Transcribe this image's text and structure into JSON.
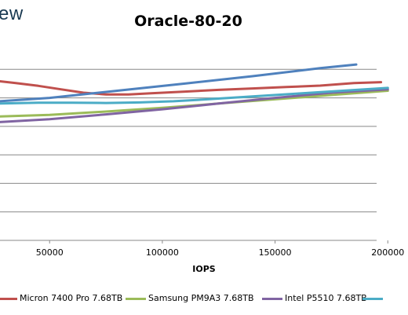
{
  "brand": {
    "text": "ew"
  },
  "chart_data": {
    "type": "line",
    "title": "Oracle-80-20",
    "xlabel": "IOPS",
    "ylabel": "",
    "xlim": [
      28000,
      202000
    ],
    "ylim": [
      0,
      7
    ],
    "x_ticks": [
      50000,
      100000,
      150000,
      200000
    ],
    "x_tick_labels": [
      "50000",
      "100000",
      "150000",
      "200000"
    ],
    "y_grid": [
      1,
      2,
      3,
      4,
      5,
      6
    ],
    "grid": true,
    "legend_position": "bottom",
    "series": [
      {
        "name": "Micron 7400 Pro 7.68TB",
        "color": "#c0504d",
        "x": [
          28000,
          35000,
          45000,
          55000,
          65000,
          75000,
          85000,
          95000,
          110000,
          125000,
          140000,
          155000,
          170000,
          185000,
          197000
        ],
        "y": [
          5.58,
          5.52,
          5.42,
          5.3,
          5.18,
          5.12,
          5.12,
          5.16,
          5.22,
          5.28,
          5.33,
          5.38,
          5.43,
          5.52,
          5.55
        ]
      },
      {
        "name": "Samsung PM9A3 7.68TB",
        "color": "#9bbb59",
        "x": [
          28000,
          50000,
          75000,
          100000,
          125000,
          150000,
          175000,
          200000
        ],
        "y": [
          4.35,
          4.4,
          4.52,
          4.65,
          4.8,
          4.95,
          5.1,
          5.25
        ]
      },
      {
        "name": "Intel P5510 7.68TB",
        "color": "#8064a2",
        "x": [
          28000,
          50000,
          75000,
          100000,
          125000,
          150000,
          175000,
          200000
        ],
        "y": [
          4.15,
          4.25,
          4.42,
          4.6,
          4.8,
          5.0,
          5.18,
          5.3
        ]
      },
      {
        "name": "",
        "color": "#4bacc6",
        "x": [
          28000,
          45000,
          60000,
          75000,
          90000,
          105000,
          120000,
          140000,
          160000,
          180000,
          200000
        ],
        "y": [
          4.8,
          4.83,
          4.83,
          4.82,
          4.84,
          4.88,
          4.95,
          5.05,
          5.15,
          5.25,
          5.35
        ]
      },
      {
        "name": "",
        "color": "#4f81bd",
        "x": [
          28000,
          50000,
          80000,
          110000,
          140000,
          170000,
          186000
        ],
        "y": [
          4.88,
          5.0,
          5.25,
          5.5,
          5.76,
          6.04,
          6.17
        ]
      }
    ]
  }
}
